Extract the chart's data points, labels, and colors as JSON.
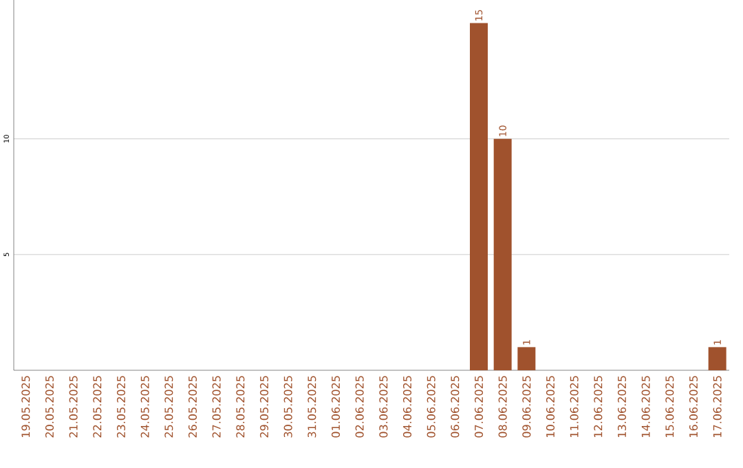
{
  "chart_data": {
    "type": "bar",
    "categories": [
      "19.05.2025",
      "20.05.2025",
      "21.05.2025",
      "22.05.2025",
      "23.05.2025",
      "24.05.2025",
      "25.05.2025",
      "26.05.2025",
      "27.05.2025",
      "28.05.2025",
      "29.05.2025",
      "30.05.2025",
      "31.05.2025",
      "01.06.2025",
      "02.06.2025",
      "03.06.2025",
      "04.06.2025",
      "05.06.2025",
      "06.06.2025",
      "07.06.2025",
      "08.06.2025",
      "09.06.2025",
      "10.06.2025",
      "11.06.2025",
      "12.06.2025",
      "13.06.2025",
      "14.06.2025",
      "15.06.2025",
      "16.06.2025",
      "17.06.2025"
    ],
    "values": [
      0,
      0,
      0,
      0,
      0,
      0,
      0,
      0,
      0,
      0,
      0,
      0,
      0,
      0,
      0,
      0,
      0,
      0,
      0,
      15,
      10,
      1,
      0,
      0,
      0,
      0,
      0,
      0,
      0,
      1
    ],
    "value_labels": [
      null,
      null,
      null,
      null,
      null,
      null,
      null,
      null,
      null,
      null,
      null,
      null,
      null,
      null,
      null,
      null,
      null,
      null,
      null,
      "15",
      "10",
      "1",
      null,
      null,
      null,
      null,
      null,
      null,
      null,
      "1"
    ],
    "color": "#a0522d",
    "ylim": [
      0,
      16
    ],
    "yticks": [
      5,
      10
    ],
    "grid": "y"
  }
}
